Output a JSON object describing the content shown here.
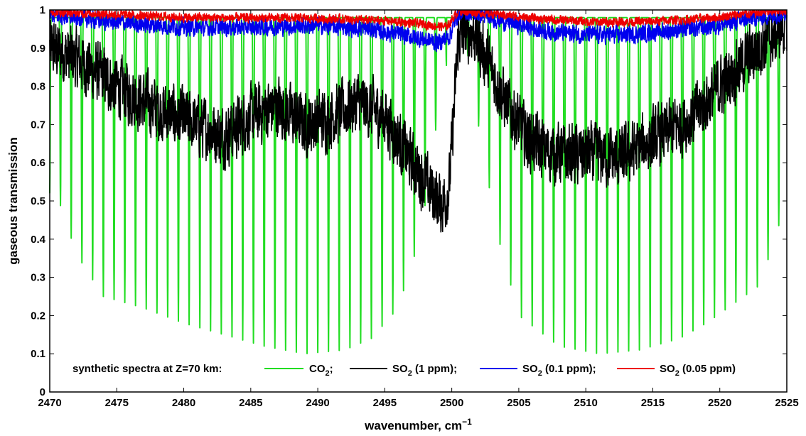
{
  "chart_data": {
    "type": "line",
    "xlabel": "wavenumber, cm",
    "xlabel_sup": "−1",
    "ylabel": "gaseous transmission",
    "xlim": [
      2470,
      2525
    ],
    "ylim": [
      0,
      1
    ],
    "x_ticks": [
      "2470",
      "2475",
      "2480",
      "2485",
      "2490",
      "2495",
      "2500",
      "2505",
      "2510",
      "2515",
      "2520",
      "2525"
    ],
    "y_ticks": [
      "0",
      "0.1",
      "0.2",
      "0.3",
      "0.4",
      "0.5",
      "0.6",
      "0.7",
      "0.8",
      "0.9",
      "1"
    ],
    "grid": false,
    "legend": {
      "placement": "bottom",
      "prefix": "synthetic spectra at Z=70 km:",
      "items": [
        {
          "main": "CO",
          "sub": "2",
          "tail": ";",
          "color": "#22dd22"
        },
        {
          "main": "SO",
          "sub": "2",
          "tail": " (1 ppm);",
          "color": "#000000"
        },
        {
          "main": "SO",
          "sub": "2",
          "tail": " (0.1 ppm);",
          "color": "#0000ee"
        },
        {
          "main": "SO",
          "sub": "2",
          "tail": " (0.05 ppm)",
          "color": "#ee0000"
        }
      ]
    },
    "series": [
      {
        "label": "CO2",
        "color": "#22dd22",
        "style": "periodic_absorption",
        "line_spacing": 0.8,
        "max_transmission": 0.98,
        "band_minima": [
          {
            "x": 2470.5,
            "y": 0.52
          },
          {
            "x": 2472.0,
            "y": 0.36
          },
          {
            "x": 2474.0,
            "y": 0.25
          },
          {
            "x": 2477.0,
            "y": 0.22
          },
          {
            "x": 2480.0,
            "y": 0.18
          },
          {
            "x": 2483.0,
            "y": 0.15
          },
          {
            "x": 2486.0,
            "y": 0.12
          },
          {
            "x": 2489.0,
            "y": 0.1
          },
          {
            "x": 2492.0,
            "y": 0.11
          },
          {
            "x": 2494.0,
            "y": 0.14
          },
          {
            "x": 2496.0,
            "y": 0.22
          },
          {
            "x": 2497.6,
            "y": 0.4
          },
          {
            "x": 2498.6,
            "y": 0.62
          },
          {
            "x": 2499.3,
            "y": 0.85
          },
          {
            "x": 2501.2,
            "y": 0.88
          },
          {
            "x": 2502.2,
            "y": 0.65
          },
          {
            "x": 2503.5,
            "y": 0.4
          },
          {
            "x": 2505.0,
            "y": 0.2
          },
          {
            "x": 2508.0,
            "y": 0.12
          },
          {
            "x": 2511.0,
            "y": 0.1
          },
          {
            "x": 2514.0,
            "y": 0.11
          },
          {
            "x": 2517.0,
            "y": 0.14
          },
          {
            "x": 2519.0,
            "y": 0.18
          },
          {
            "x": 2521.0,
            "y": 0.23
          },
          {
            "x": 2523.0,
            "y": 0.28
          },
          {
            "x": 2524.8,
            "y": 0.48
          }
        ]
      },
      {
        "label": "SO2 (1 ppm)",
        "color": "#000000",
        "style": "noisy",
        "amplitude": 0.07,
        "baseline": [
          {
            "x": 2470.0,
            "y": 0.9
          },
          {
            "x": 2472.0,
            "y": 0.87
          },
          {
            "x": 2475.0,
            "y": 0.8
          },
          {
            "x": 2478.0,
            "y": 0.74
          },
          {
            "x": 2481.0,
            "y": 0.7
          },
          {
            "x": 2483.0,
            "y": 0.67
          },
          {
            "x": 2485.0,
            "y": 0.72
          },
          {
            "x": 2487.0,
            "y": 0.75
          },
          {
            "x": 2489.0,
            "y": 0.7
          },
          {
            "x": 2491.0,
            "y": 0.72
          },
          {
            "x": 2493.0,
            "y": 0.76
          },
          {
            "x": 2495.0,
            "y": 0.72
          },
          {
            "x": 2496.5,
            "y": 0.63
          },
          {
            "x": 2498.0,
            "y": 0.55
          },
          {
            "x": 2499.3,
            "y": 0.49
          },
          {
            "x": 2499.8,
            "y": 0.53
          },
          {
            "x": 2500.5,
            "y": 0.93
          },
          {
            "x": 2501.5,
            "y": 0.95
          },
          {
            "x": 2502.5,
            "y": 0.88
          },
          {
            "x": 2504.0,
            "y": 0.76
          },
          {
            "x": 2505.5,
            "y": 0.67
          },
          {
            "x": 2507.0,
            "y": 0.63
          },
          {
            "x": 2509.0,
            "y": 0.62
          },
          {
            "x": 2511.0,
            "y": 0.62
          },
          {
            "x": 2512.5,
            "y": 0.61
          },
          {
            "x": 2514.0,
            "y": 0.64
          },
          {
            "x": 2516.0,
            "y": 0.68
          },
          {
            "x": 2518.0,
            "y": 0.72
          },
          {
            "x": 2520.0,
            "y": 0.8
          },
          {
            "x": 2522.0,
            "y": 0.87
          },
          {
            "x": 2523.5,
            "y": 0.92
          },
          {
            "x": 2525.0,
            "y": 0.97
          }
        ]
      },
      {
        "label": "SO2 (0.1 ppm)",
        "color": "#0000ee",
        "style": "noisy",
        "amplitude": 0.02,
        "baseline": [
          {
            "x": 2470.0,
            "y": 0.99
          },
          {
            "x": 2472.0,
            "y": 0.98
          },
          {
            "x": 2476.0,
            "y": 0.965
          },
          {
            "x": 2480.0,
            "y": 0.955
          },
          {
            "x": 2485.0,
            "y": 0.955
          },
          {
            "x": 2490.0,
            "y": 0.96
          },
          {
            "x": 2494.0,
            "y": 0.95
          },
          {
            "x": 2497.0,
            "y": 0.93
          },
          {
            "x": 2499.0,
            "y": 0.915
          },
          {
            "x": 2499.8,
            "y": 0.93
          },
          {
            "x": 2500.5,
            "y": 0.995
          },
          {
            "x": 2502.0,
            "y": 0.99
          },
          {
            "x": 2504.0,
            "y": 0.97
          },
          {
            "x": 2507.0,
            "y": 0.945
          },
          {
            "x": 2510.0,
            "y": 0.935
          },
          {
            "x": 2513.0,
            "y": 0.935
          },
          {
            "x": 2516.0,
            "y": 0.945
          },
          {
            "x": 2519.0,
            "y": 0.955
          },
          {
            "x": 2522.0,
            "y": 0.975
          },
          {
            "x": 2525.0,
            "y": 0.995
          }
        ]
      },
      {
        "label": "SO2 (0.05 ppm)",
        "color": "#ee0000",
        "style": "noisy",
        "amplitude": 0.01,
        "baseline": [
          {
            "x": 2470.0,
            "y": 0.995
          },
          {
            "x": 2474.0,
            "y": 0.99
          },
          {
            "x": 2480.0,
            "y": 0.98
          },
          {
            "x": 2490.0,
            "y": 0.978
          },
          {
            "x": 2495.0,
            "y": 0.972
          },
          {
            "x": 2498.0,
            "y": 0.962
          },
          {
            "x": 2499.6,
            "y": 0.955
          },
          {
            "x": 2500.5,
            "y": 0.998
          },
          {
            "x": 2503.0,
            "y": 0.99
          },
          {
            "x": 2507.0,
            "y": 0.975
          },
          {
            "x": 2511.0,
            "y": 0.968
          },
          {
            "x": 2515.0,
            "y": 0.97
          },
          {
            "x": 2519.0,
            "y": 0.978
          },
          {
            "x": 2522.0,
            "y": 0.99
          },
          {
            "x": 2525.0,
            "y": 0.999
          }
        ]
      }
    ]
  }
}
